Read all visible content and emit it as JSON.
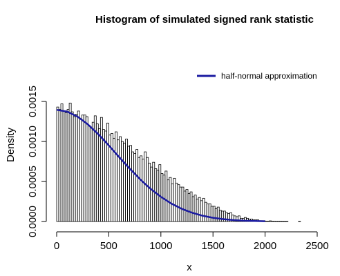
{
  "chart_data": {
    "type": "histogram",
    "title": "Histogram of simulated signed rank statistic",
    "xlabel": "x",
    "ylabel": "Density",
    "xlim": [
      0,
      2600
    ],
    "ylim": [
      0,
      0.0015
    ],
    "x_ticks": [
      0,
      500,
      1000,
      1500,
      2000,
      2500
    ],
    "x_tick_labels": [
      "0",
      "500",
      "1000",
      "1500",
      "2000",
      "2500"
    ],
    "y_ticks": [
      0,
      0.0005,
      0.001,
      0.0015
    ],
    "y_tick_labels": [
      "0.0000",
      "0.0005",
      "0.0010",
      "0.0015"
    ],
    "bin_width": 20,
    "bin_start": 0,
    "densities": [
      0.00143,
      0.0014,
      0.00147,
      0.00138,
      0.00136,
      0.0014,
      0.00148,
      0.00137,
      0.00131,
      0.00134,
      0.00138,
      0.00128,
      0.00133,
      0.00133,
      0.00131,
      0.0012,
      0.00118,
      0.00124,
      0.00132,
      0.00122,
      0.00116,
      0.0013,
      0.00115,
      0.00113,
      0.00123,
      0.00108,
      0.0011,
      0.00104,
      0.00112,
      0.00102,
      0.00106,
      0.001,
      0.00098,
      0.00103,
      0.00094,
      0.00095,
      0.00087,
      0.00085,
      0.0009,
      0.0008,
      0.00082,
      0.00078,
      0.00087,
      0.0008,
      0.00073,
      0.00068,
      0.00074,
      0.00066,
      0.00064,
      0.00071,
      0.0006,
      0.00058,
      0.00063,
      0.00052,
      0.00055,
      0.00047,
      0.00054,
      0.00048,
      0.00046,
      0.00043,
      0.00043,
      0.00038,
      0.0004,
      0.00035,
      0.00037,
      0.00031,
      0.00033,
      0.00028,
      0.0003,
      0.00026,
      0.00029,
      0.00024,
      0.00022,
      0.00022,
      0.00019,
      0.00019,
      0.00016,
      0.00018,
      0.00014,
      0.00013,
      0.00013,
      0.00011,
      0.0001,
      0.00011,
      8e-05,
      7e-05,
      6e-05,
      7e-05,
      4e-05,
      4e-05,
      5e-05,
      4e-05,
      3e-05,
      3e-05,
      2e-05,
      2e-05,
      2e-05,
      1e-05,
      1e-05,
      1e-05,
      5e-06,
      5e-06,
      8e-06,
      5e-06,
      3e-06,
      2e-06,
      2e-06,
      2e-06,
      1e-06,
      1e-06,
      1e-06,
      0,
      0,
      0,
      0,
      0,
      1e-06,
      0,
      0,
      0,
      0,
      0,
      0,
      0,
      0,
      0,
      0,
      0,
      0,
      0
    ],
    "series": [
      {
        "name": "half-normal approximation",
        "color": "#1a1aa0",
        "sigma": 572,
        "x": [
          0,
          100,
          200,
          300,
          400,
          500,
          600,
          700,
          800,
          900,
          1000,
          1100,
          1200,
          1300,
          1400,
          1500,
          1600,
          1700,
          1800,
          1900,
          2000
        ],
        "y": [
          0.001395,
          0.001373,
          0.00131,
          0.001213,
          0.00109,
          0.00095,
          0.000805,
          0.000662,
          0.000528,
          0.00041,
          0.000308,
          0.000224,
          0.000159,
          0.000109,
          7.2e-05,
          4.6e-05,
          2.9e-05,
          1.7e-05,
          1e-05,
          6e-06,
          3e-06
        ]
      }
    ],
    "legend": {
      "position": "top-right",
      "entries": [
        "half-normal approximation"
      ]
    },
    "grid": false
  }
}
